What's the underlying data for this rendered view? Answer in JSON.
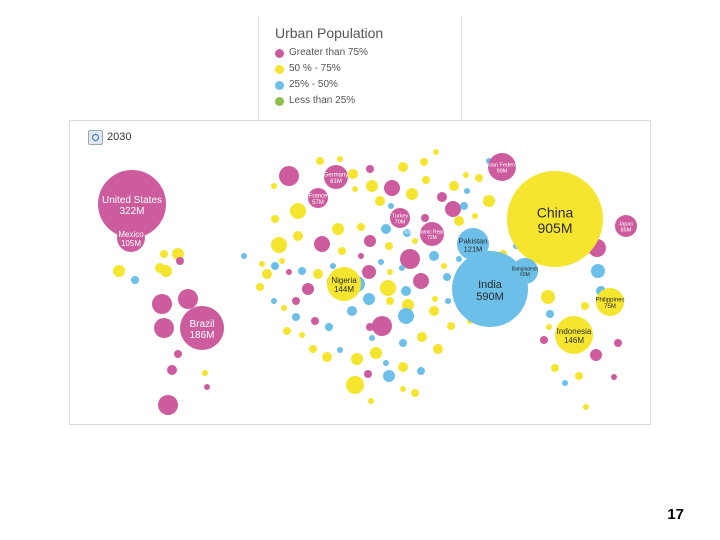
{
  "legend": {
    "title": "Urban Population",
    "items": [
      {
        "label": "Greater than 75%",
        "color": "#cc5c9e"
      },
      {
        "label": "50 % - 75%",
        "color": "#f5e52e"
      },
      {
        "label": "25% - 50%",
        "color": "#6cbfe8"
      },
      {
        "label": "Less than 25%",
        "color": "#8fc04b"
      }
    ]
  },
  "map": {
    "year": "2030"
  },
  "page_number": "17",
  "chart_data": {
    "type": "bubble",
    "year": "2030",
    "labeled_bubbles": [
      {
        "country": "United States",
        "value": "322M",
        "category": "Greater than 75%"
      },
      {
        "country": "Mexico",
        "value": "105M",
        "category": "Greater than 75%"
      },
      {
        "country": "Brazil",
        "value": "186M",
        "category": "Greater than 75%"
      },
      {
        "country": "Germany",
        "value": "61M",
        "category": "Greater than 75%"
      },
      {
        "country": "France",
        "value": "57M",
        "category": "Greater than 75%"
      },
      {
        "country": "Turkey",
        "value": "70M",
        "category": "Greater than 75%"
      },
      {
        "country": "Russian Federation",
        "value": "99M",
        "category": "Greater than 75%"
      },
      {
        "country": "Iran (Islamic Republic of)",
        "value": "72M",
        "category": "Greater than 75%"
      },
      {
        "country": "Japan",
        "value": "85M",
        "category": "Greater than 75%"
      },
      {
        "country": "China",
        "value": "905M",
        "category": "50 % - 75%"
      },
      {
        "country": "Nigeria",
        "value": "144M",
        "category": "50 % - 75%"
      },
      {
        "country": "Indonesia",
        "value": "146M",
        "category": "50 % - 75%"
      },
      {
        "country": "Philippines",
        "value": "75M",
        "category": "50 % - 75%"
      },
      {
        "country": "India",
        "value": "590M",
        "category": "25% - 50%"
      },
      {
        "country": "Pakistan",
        "value": "121M",
        "category": "25% - 50%"
      },
      {
        "country": "Bangladesh",
        "value": "69M",
        "category": "25% - 50%"
      }
    ]
  }
}
